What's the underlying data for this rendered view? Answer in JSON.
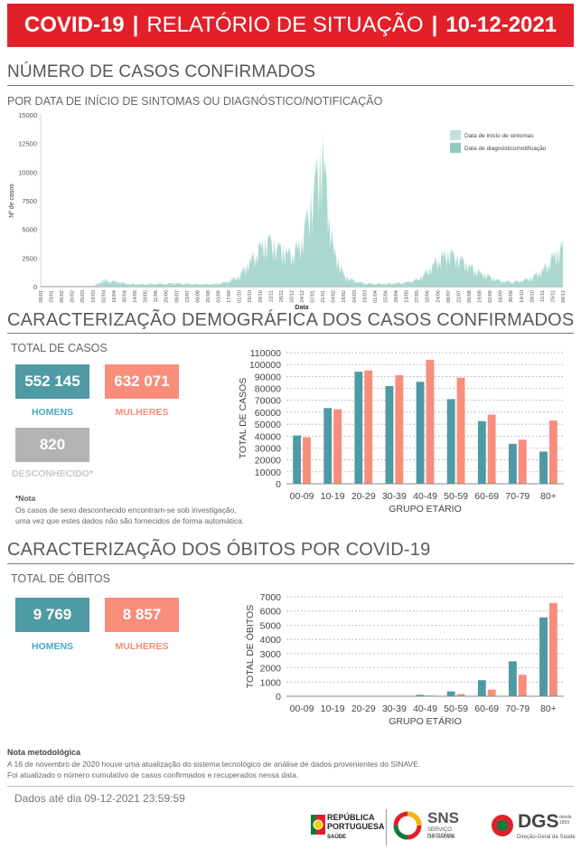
{
  "header": {
    "part1": "COVID-19",
    "sep": "|",
    "part2": "RELATÓRIO DE SITUAÇÃO",
    "part3": "10-12-2021"
  },
  "cases_section": {
    "title": "NÚMERO DE CASOS CONFIRMADOS",
    "subtitle": "POR DATA DE INÍCIO DE SINTOMAS OU DIAGNÓSTICO/NOTIFICAÇÃO"
  },
  "demo_section": {
    "title": "CARACTERIZAÇÃO DEMOGRÁFICA DOS CASOS CONFIRMADOS",
    "total_label": "TOTAL DE CASOS",
    "men_value": "552 145",
    "men_label": "HOMENS",
    "women_value": "632 071",
    "women_label": "MULHERES",
    "unknown_value": "820",
    "unknown_label": "DESCONHECIDO*",
    "note_title": "*Nota",
    "note_text_1": "Os casos de sexo desconhecido encontram-se sob investigação,",
    "note_text_2": "uma vez que estes dados não são fornecidos de forma automática."
  },
  "deaths_section": {
    "title": "CARACTERIZAÇÃO DOS ÓBITOS POR COVID-19",
    "total_label": "TOTAL DE ÓBITOS",
    "men_value": "9 769",
    "men_label": "HOMENS",
    "women_value": "8 857",
    "women_label": "MULHERES"
  },
  "method_note": {
    "title": "Nota metodológica",
    "line1": "A 16 de novembro de 2020 houve uma atualização do sistema tecnológico de análise de dados provenientes do SINAVE.",
    "line2": "Foi atualizado o número cumulativo de casos confirmados e recuperados nessa data."
  },
  "footer": {
    "data_date": "Dados até dia 09-12-2021 23:59:59"
  },
  "logos": {
    "rp_line1": "REPÚBLICA",
    "rp_line2": "PORTUGUESA",
    "rp_line3": "SAÚDE",
    "sns_title": "SNS",
    "sns_line1": "SERVIÇO NACIONAL",
    "sns_line2": "DE SAÚDE",
    "dgs_title": "DGS",
    "dgs_since1": "desde",
    "dgs_since2": "1899",
    "dgs_sub": "Direção-Geral da Saúde"
  },
  "colors": {
    "red": "#e2202a",
    "teal": "#4e9aa5",
    "salmon": "#f88d7b",
    "gray": "#b3b3b3",
    "light_teal": "#a8d5cc"
  },
  "chart_data": [
    {
      "type": "area",
      "xlabel": "Data",
      "ylabel": "Nº de casos",
      "ylim": [
        0,
        15000
      ],
      "yticks": [
        "0",
        "2500",
        "5000",
        "7500",
        "10000",
        "12500",
        "15000"
      ],
      "x": [
        "09/01",
        "23/01",
        "06/02",
        "20/02",
        "05/03",
        "19/03",
        "02/04",
        "16/04",
        "30/04",
        "14/05",
        "28/05",
        "11/06",
        "25/06",
        "09/07",
        "23/07",
        "06/08",
        "20/08",
        "03/09",
        "17/09",
        "01/10",
        "15/10",
        "29/10",
        "12/11",
        "26/11",
        "10/12",
        "24/12",
        "07/01",
        "21/01",
        "04/02",
        "18/02",
        "04/03",
        "18/03",
        "01/04",
        "15/04",
        "29/04",
        "13/05",
        "27/05",
        "10/06",
        "24/06",
        "08/07",
        "22/07",
        "05/08",
        "19/08",
        "02/09",
        "16/09",
        "30/09",
        "14/10",
        "28/10",
        "11/11",
        "25/11",
        "09/12"
      ],
      "legend": [
        "Data de início de sintomas",
        "Data de diagnóstico/notificação"
      ],
      "legend_position": "top-right",
      "series": [
        {
          "name": "Data de início de sintomas",
          "values": [
            0,
            0,
            0,
            0,
            0,
            0,
            700,
            550,
            350,
            250,
            250,
            300,
            300,
            350,
            300,
            250,
            250,
            300,
            550,
            1100,
            2500,
            4000,
            4600,
            3700,
            3300,
            4500,
            9200,
            13500,
            4000,
            1200,
            600,
            350,
            300,
            300,
            350,
            450,
            700,
            1500,
            2800,
            3400,
            2900,
            2100,
            1500,
            1000,
            600,
            500,
            600,
            900,
            1600,
            3000,
            4000
          ]
        },
        {
          "name": "Data de diagnóstico/notificação",
          "values": [
            0,
            0,
            0,
            0,
            0,
            0,
            500,
            450,
            300,
            200,
            200,
            250,
            250,
            300,
            250,
            200,
            200,
            250,
            450,
            900,
            2200,
            3800,
            4300,
            3500,
            3100,
            4000,
            8500,
            12500,
            3500,
            1000,
            500,
            300,
            250,
            250,
            300,
            400,
            600,
            1300,
            2500,
            3100,
            2700,
            1900,
            1300,
            900,
            500,
            400,
            500,
            800,
            1400,
            2700,
            3600
          ]
        }
      ]
    },
    {
      "type": "bar",
      "categories": [
        "00-09",
        "10-19",
        "20-29",
        "30-39",
        "40-49",
        "50-59",
        "60-69",
        "70-79",
        "80+"
      ],
      "xlabel": "GRUPO ETÁRIO",
      "ylabel": "TOTAL DE CASOS",
      "ylim": [
        0,
        110000
      ],
      "yticks": [
        "0",
        "10000",
        "20000",
        "30000",
        "40000",
        "50000",
        "60000",
        "70000",
        "80000",
        "90000",
        "100000",
        "110000"
      ],
      "series": [
        {
          "values": [
            40500,
            63500,
            94000,
            82000,
            85500,
            71000,
            52500,
            33500,
            27000
          ]
        },
        {
          "values": [
            39000,
            62500,
            95000,
            91000,
            104000,
            89000,
            58000,
            37000,
            53000
          ]
        }
      ]
    },
    {
      "type": "bar",
      "categories": [
        "00-09",
        "10-19",
        "20-29",
        "30-39",
        "40-49",
        "50-59",
        "60-69",
        "70-79",
        "80+"
      ],
      "xlabel": "GRUPO ETÁRIO",
      "ylabel": "TOTAL DE ÓBITOS",
      "ylim": [
        0,
        7000
      ],
      "yticks": [
        "0",
        "1000",
        "2000",
        "3000",
        "4000",
        "5000",
        "6000",
        "7000"
      ],
      "series": [
        {
          "values": [
            2,
            3,
            10,
            25,
            100,
            340,
            1130,
            2460,
            5550
          ]
        },
        {
          "values": [
            1,
            2,
            5,
            15,
            55,
            150,
            470,
            1510,
            6560
          ]
        }
      ]
    }
  ]
}
